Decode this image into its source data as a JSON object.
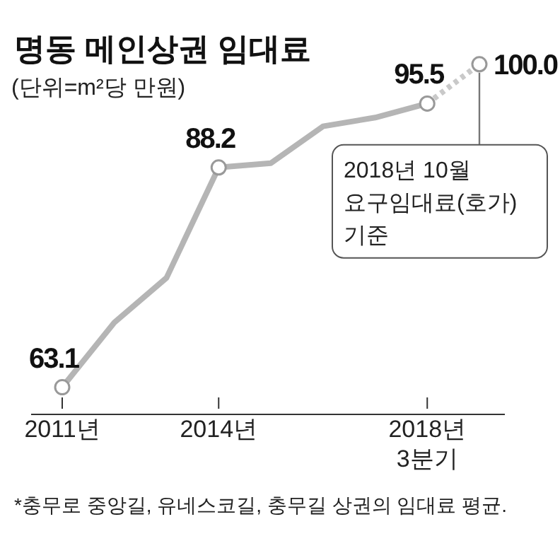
{
  "chart_data": {
    "type": "line",
    "title": "명동 메인상권 임대료",
    "subtitle": "(단위=m²당 만원)",
    "categories": [
      "2011년",
      null,
      null,
      "2014년",
      null,
      null,
      null,
      "2018년\n3분기",
      null
    ],
    "series": [
      {
        "color": "#b5b5b5",
        "line_style": "solid",
        "values": [
          63.1,
          70.5,
          75.6,
          88.2,
          88.7,
          92.9,
          93.9,
          95.5,
          null
        ],
        "value_labels": [
          "63.1",
          null,
          null,
          "88.2",
          null,
          null,
          null,
          "95.5",
          null
        ]
      },
      {
        "color": "#c9c9c9",
        "line_style": "dotted",
        "values": [
          null,
          null,
          null,
          null,
          null,
          null,
          null,
          95.5,
          100.0
        ],
        "value_labels": [
          null,
          null,
          null,
          null,
          null,
          null,
          null,
          null,
          "100.0"
        ]
      }
    ],
    "tick_labels": "x",
    "annotations": [
      "2018년 10월\n요구임대료(호가)\n기준",
      "*충무로 중앙길, 유네스코길, 충무길 상권의 임대료 평균."
    ]
  }
}
